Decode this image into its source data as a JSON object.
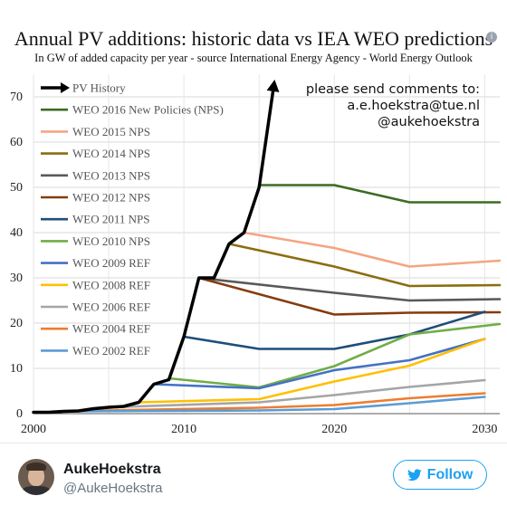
{
  "header": {
    "title": "Annual PV additions: historic data vs IEA WEO predictions",
    "subtitle": "In GW of added capacity per year - source International Energy Agency - World Energy Outlook"
  },
  "comments": {
    "line1": "please send comments to:",
    "line2": "a.e.hoekstra@tue.nl",
    "line3": "@aukehoekstra"
  },
  "chart_data": {
    "type": "line",
    "title": "Annual PV additions: historic data vs IEA WEO predictions",
    "subtitle": "In GW of added capacity per year - source International Energy Agency - World Energy Outlook",
    "xlabel": "",
    "ylabel": "",
    "xlim": [
      2000,
      2031
    ],
    "ylim": [
      0,
      75
    ],
    "x_ticks": [
      2000,
      2010,
      2020,
      2030
    ],
    "y_ticks": [
      0,
      10,
      20,
      30,
      40,
      50,
      60,
      70
    ],
    "grid": true,
    "legend_position": "top-left",
    "series": [
      {
        "name": "PV History",
        "color": "#000000",
        "arrow": true,
        "points": [
          [
            2000,
            0.3
          ],
          [
            2001,
            0.3
          ],
          [
            2002,
            0.5
          ],
          [
            2003,
            0.6
          ],
          [
            2004,
            1.1
          ],
          [
            2005,
            1.4
          ],
          [
            2006,
            1.6
          ],
          [
            2007,
            2.5
          ],
          [
            2008,
            6.5
          ],
          [
            2009,
            7.5
          ],
          [
            2010,
            17
          ],
          [
            2011,
            30
          ],
          [
            2012,
            30
          ],
          [
            2013,
            37.5
          ],
          [
            2014,
            40
          ],
          [
            2015,
            50
          ],
          [
            2016,
            73
          ]
        ]
      },
      {
        "name": "WEO 2016 New Policies (NPS)",
        "color": "#3d6b22",
        "points": [
          [
            2015,
            50.5
          ],
          [
            2020,
            50.5
          ],
          [
            2025,
            46.7
          ],
          [
            2031,
            46.7
          ]
        ]
      },
      {
        "name": "WEO 2015 NPS",
        "color": "#f4a582",
        "points": [
          [
            2014,
            40
          ],
          [
            2020,
            36.6
          ],
          [
            2025,
            32.5
          ],
          [
            2031,
            33.8
          ]
        ]
      },
      {
        "name": "WEO 2014 NPS",
        "color": "#8c6d0e",
        "points": [
          [
            2013,
            37.5
          ],
          [
            2020,
            32.5
          ],
          [
            2025,
            28.2
          ],
          [
            2031,
            28.4
          ]
        ]
      },
      {
        "name": "WEO 2013 NPS",
        "color": "#595959",
        "points": [
          [
            2011,
            30
          ],
          [
            2020,
            26.7
          ],
          [
            2025,
            25
          ],
          [
            2031,
            25.3
          ]
        ]
      },
      {
        "name": "WEO 2012 NPS",
        "color": "#843c0c",
        "points": [
          [
            2011,
            30
          ],
          [
            2020,
            21.9
          ],
          [
            2025,
            22.3
          ],
          [
            2031,
            22.4
          ]
        ]
      },
      {
        "name": "WEO 2011 NPS",
        "color": "#1f4e79",
        "points": [
          [
            2010,
            17
          ],
          [
            2015,
            14.3
          ],
          [
            2020,
            14.3
          ],
          [
            2025,
            17.5
          ],
          [
            2030,
            22.5
          ]
        ]
      },
      {
        "name": "WEO 2010 NPS",
        "color": "#70ad47",
        "points": [
          [
            2009,
            7.8
          ],
          [
            2015,
            5.8
          ],
          [
            2020,
            10.5
          ],
          [
            2025,
            17.5
          ],
          [
            2031,
            19.8
          ]
        ]
      },
      {
        "name": "WEO 2009 REF",
        "color": "#4472c4",
        "points": [
          [
            2008,
            6.5
          ],
          [
            2015,
            5.6
          ],
          [
            2020,
            9.6
          ],
          [
            2025,
            11.8
          ],
          [
            2030,
            16.5
          ]
        ]
      },
      {
        "name": "WEO 2008 REF",
        "color": "#ffc000",
        "points": [
          [
            2007,
            2.5
          ],
          [
            2015,
            3.2
          ],
          [
            2020,
            7.1
          ],
          [
            2025,
            10.6
          ],
          [
            2030,
            16.5
          ]
        ]
      },
      {
        "name": "WEO 2006 REF",
        "color": "#a5a5a5",
        "points": [
          [
            2005,
            1.4
          ],
          [
            2015,
            2.5
          ],
          [
            2020,
            4.1
          ],
          [
            2025,
            5.9
          ],
          [
            2030,
            7.4
          ]
        ]
      },
      {
        "name": "WEO 2004 REF",
        "color": "#ed7d31",
        "points": [
          [
            2003,
            0.6
          ],
          [
            2015,
            1.3
          ],
          [
            2020,
            1.9
          ],
          [
            2025,
            3.4
          ],
          [
            2030,
            4.5
          ]
        ]
      },
      {
        "name": "WEO 2002 REF",
        "color": "#5b9bd5",
        "points": [
          [
            2002,
            0.5
          ],
          [
            2015,
            0.7
          ],
          [
            2020,
            1.0
          ],
          [
            2025,
            2.3
          ],
          [
            2030,
            3.7
          ]
        ]
      }
    ]
  },
  "profile": {
    "name": "AukeHoekstra",
    "handle": "@AukeHoekstra",
    "follow_label": "Follow",
    "follow_color": "#1da1f2"
  }
}
